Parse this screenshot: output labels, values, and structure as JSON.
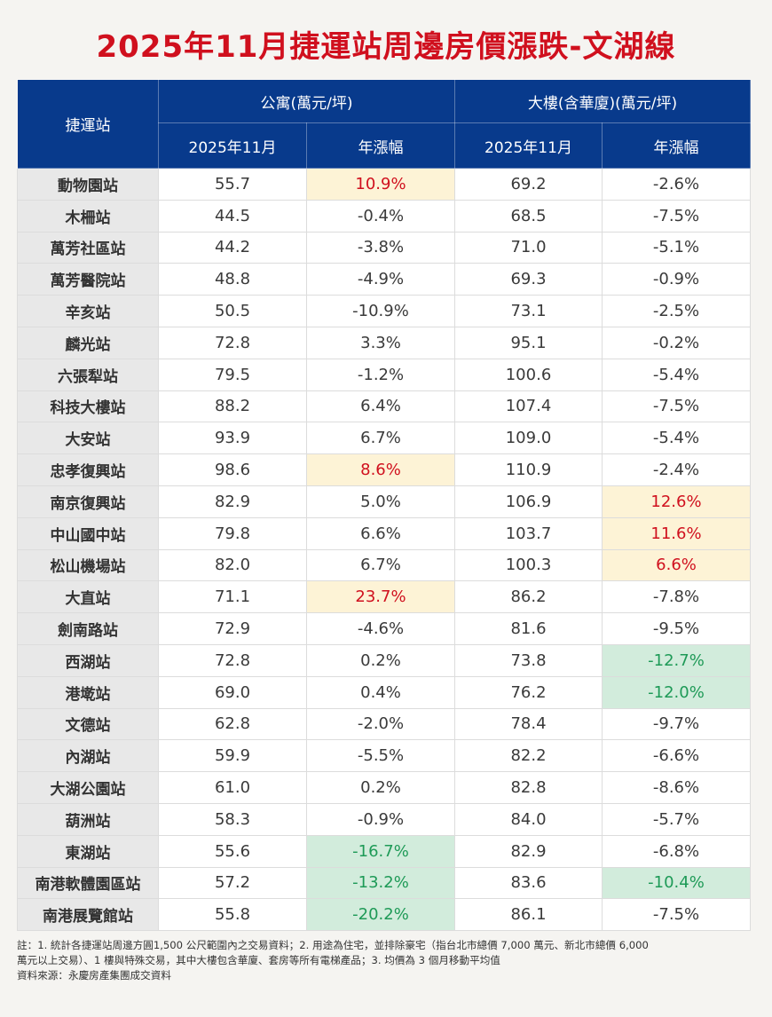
{
  "title": "2025年11月捷運站周邊房價漲跌-文湖線",
  "headers": {
    "station": "捷運站",
    "apartment_group": "公寓(萬元/坪)",
    "building_group": "大樓(含華廈)(萬元/坪)",
    "price_col": "2025年11月",
    "change_col": "年漲幅"
  },
  "colors": {
    "header_bg": "#083a8c",
    "title_red": "#d0101e",
    "increase_red": "#d0101e",
    "increase_bg": "#fdf3d6",
    "decrease_green": "#1e9a57",
    "decrease_bg": "#d2ecdc"
  },
  "rows": [
    {
      "station": "動物園站",
      "apt_price": "55.7",
      "apt_change": "10.9%",
      "apt_hl": "hi",
      "bld_price": "69.2",
      "bld_change": "-2.6%",
      "bld_hl": ""
    },
    {
      "station": "木柵站",
      "apt_price": "44.5",
      "apt_change": "-0.4%",
      "apt_hl": "",
      "bld_price": "68.5",
      "bld_change": "-7.5%",
      "bld_hl": ""
    },
    {
      "station": "萬芳社區站",
      "apt_price": "44.2",
      "apt_change": "-3.8%",
      "apt_hl": "",
      "bld_price": "71.0",
      "bld_change": "-5.1%",
      "bld_hl": ""
    },
    {
      "station": "萬芳醫院站",
      "apt_price": "48.8",
      "apt_change": "-4.9%",
      "apt_hl": "",
      "bld_price": "69.3",
      "bld_change": "-0.9%",
      "bld_hl": ""
    },
    {
      "station": "辛亥站",
      "apt_price": "50.5",
      "apt_change": "-10.9%",
      "apt_hl": "",
      "bld_price": "73.1",
      "bld_change": "-2.5%",
      "bld_hl": ""
    },
    {
      "station": "麟光站",
      "apt_price": "72.8",
      "apt_change": "3.3%",
      "apt_hl": "",
      "bld_price": "95.1",
      "bld_change": "-0.2%",
      "bld_hl": ""
    },
    {
      "station": "六張犁站",
      "apt_price": "79.5",
      "apt_change": "-1.2%",
      "apt_hl": "",
      "bld_price": "100.6",
      "bld_change": "-5.4%",
      "bld_hl": ""
    },
    {
      "station": "科技大樓站",
      "apt_price": "88.2",
      "apt_change": "6.4%",
      "apt_hl": "",
      "bld_price": "107.4",
      "bld_change": "-7.5%",
      "bld_hl": ""
    },
    {
      "station": "大安站",
      "apt_price": "93.9",
      "apt_change": "6.7%",
      "apt_hl": "",
      "bld_price": "109.0",
      "bld_change": "-5.4%",
      "bld_hl": ""
    },
    {
      "station": "忠孝復興站",
      "apt_price": "98.6",
      "apt_change": "8.6%",
      "apt_hl": "hi",
      "bld_price": "110.9",
      "bld_change": "-2.4%",
      "bld_hl": ""
    },
    {
      "station": "南京復興站",
      "apt_price": "82.9",
      "apt_change": "5.0%",
      "apt_hl": "",
      "bld_price": "106.9",
      "bld_change": "12.6%",
      "bld_hl": "hi"
    },
    {
      "station": "中山國中站",
      "apt_price": "79.8",
      "apt_change": "6.6%",
      "apt_hl": "",
      "bld_price": "103.7",
      "bld_change": "11.6%",
      "bld_hl": "hi"
    },
    {
      "station": "松山機場站",
      "apt_price": "82.0",
      "apt_change": "6.7%",
      "apt_hl": "",
      "bld_price": "100.3",
      "bld_change": "6.6%",
      "bld_hl": "hi"
    },
    {
      "station": "大直站",
      "apt_price": "71.1",
      "apt_change": "23.7%",
      "apt_hl": "hi",
      "bld_price": "86.2",
      "bld_change": "-7.8%",
      "bld_hl": ""
    },
    {
      "station": "劍南路站",
      "apt_price": "72.9",
      "apt_change": "-4.6%",
      "apt_hl": "",
      "bld_price": "81.6",
      "bld_change": "-9.5%",
      "bld_hl": ""
    },
    {
      "station": "西湖站",
      "apt_price": "72.8",
      "apt_change": "0.2%",
      "apt_hl": "",
      "bld_price": "73.8",
      "bld_change": "-12.7%",
      "bld_hl": "lo"
    },
    {
      "station": "港墘站",
      "apt_price": "69.0",
      "apt_change": "0.4%",
      "apt_hl": "",
      "bld_price": "76.2",
      "bld_change": "-12.0%",
      "bld_hl": "lo"
    },
    {
      "station": "文德站",
      "apt_price": "62.8",
      "apt_change": "-2.0%",
      "apt_hl": "",
      "bld_price": "78.4",
      "bld_change": "-9.7%",
      "bld_hl": ""
    },
    {
      "station": "內湖站",
      "apt_price": "59.9",
      "apt_change": "-5.5%",
      "apt_hl": "",
      "bld_price": "82.2",
      "bld_change": "-6.6%",
      "bld_hl": ""
    },
    {
      "station": "大湖公園站",
      "apt_price": "61.0",
      "apt_change": "0.2%",
      "apt_hl": "",
      "bld_price": "82.8",
      "bld_change": "-8.6%",
      "bld_hl": ""
    },
    {
      "station": "葫洲站",
      "apt_price": "58.3",
      "apt_change": "-0.9%",
      "apt_hl": "",
      "bld_price": "84.0",
      "bld_change": "-5.7%",
      "bld_hl": ""
    },
    {
      "station": "東湖站",
      "apt_price": "55.6",
      "apt_change": "-16.7%",
      "apt_hl": "lo",
      "bld_price": "82.9",
      "bld_change": "-6.8%",
      "bld_hl": ""
    },
    {
      "station": "南港軟體園區站",
      "apt_price": "57.2",
      "apt_change": "-13.2%",
      "apt_hl": "lo",
      "bld_price": "83.6",
      "bld_change": "-10.4%",
      "bld_hl": "lo"
    },
    {
      "station": "南港展覽館站",
      "apt_price": "55.8",
      "apt_change": "-20.2%",
      "apt_hl": "lo",
      "bld_price": "86.1",
      "bld_change": "-7.5%",
      "bld_hl": ""
    }
  ],
  "notes": {
    "line1": "註：1. 統計各捷運站周邊方圓1,500 公尺範圍內之交易資料；2. 用途為住宅，並排除豪宅（指台北市總價 7,000 萬元、新北市總價 6,000",
    "line2": "萬元以上交易）、1 樓與特殊交易，其中大樓包含華廈、套房等所有電梯產品；3. 均價為 3 個月移動平均值",
    "source": "資料來源：永慶房產集團成交資料"
  }
}
